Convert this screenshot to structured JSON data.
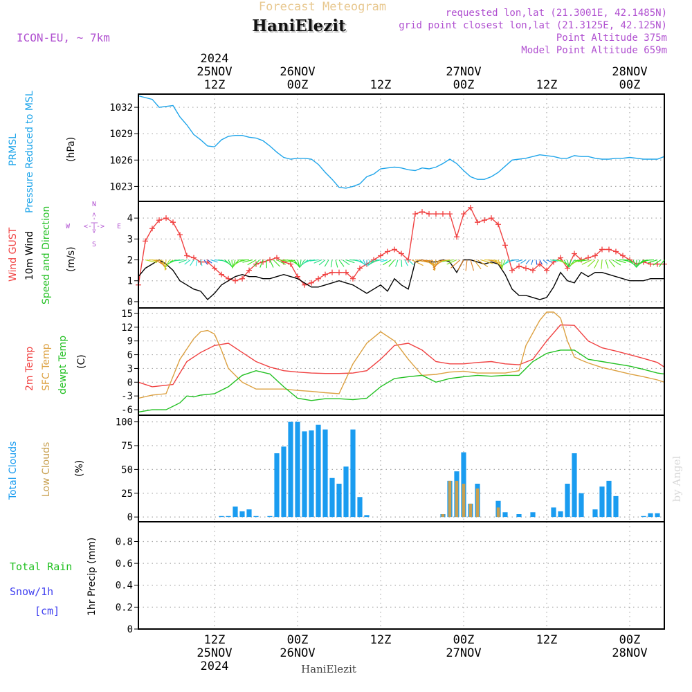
{
  "header": {
    "title": "Forecast Meteogram",
    "location": "HaniElezit",
    "model": "ICON-EU, ~ 7km",
    "requested": "requested lon,lat (21.3001E, 42.1485N)",
    "grid_point": "grid point closest lon,lat (21.3125E, 42.125N)",
    "point_altitude": "Point Altitude 375m",
    "model_altitude": "Model Point Altitude 659m",
    "compass": {
      "n": "N",
      "s": "S",
      "w": "W",
      "e": "E",
      "arrows": "<-|->"
    }
  },
  "time_axis": {
    "top_labels": [
      {
        "lines": [
          "2024",
          "25NOV",
          "12Z"
        ],
        "hour": 12
      },
      {
        "lines": [
          "26NOV",
          "00Z"
        ],
        "hour": 24
      },
      {
        "lines": [
          "12Z"
        ],
        "hour": 36
      },
      {
        "lines": [
          "27NOV",
          "00Z"
        ],
        "hour": 48
      },
      {
        "lines": [
          "12Z"
        ],
        "hour": 60
      },
      {
        "lines": [
          "28NOV",
          "00Z"
        ],
        "hour": 72
      }
    ],
    "bottom_labels": [
      {
        "lines": [
          "12Z",
          "25NOV",
          "2024"
        ],
        "hour": 12
      },
      {
        "lines": [
          "00Z",
          "26NOV"
        ],
        "hour": 24
      },
      {
        "lines": [
          "12Z"
        ],
        "hour": 36
      },
      {
        "lines": [
          "00Z",
          "27NOV"
        ],
        "hour": 48
      },
      {
        "lines": [
          "12Z"
        ],
        "hour": 60
      },
      {
        "lines": [
          "00Z",
          "28NOV"
        ],
        "hour": 72
      }
    ],
    "range_hours": [
      1,
      77
    ]
  },
  "colors": {
    "pressure": "#1fa5ea",
    "gust": "#f04040",
    "wind": "#000000",
    "temp2m": "#f04040",
    "sfc_temp": "#dca040",
    "dewpt": "#22c022",
    "total_clouds": "#1a9cf0",
    "low_clouds": "#c8a050",
    "total_rain": "#22c022",
    "snow": "#4040f0",
    "header_title": "#e8c890",
    "info": "#b050d0"
  },
  "chart_data": [
    {
      "type": "line",
      "panel": "pressure",
      "labels": [
        "PRMSL",
        "Pressure Reduced to MSL",
        "(hPa)"
      ],
      "yticks": [
        1023,
        1026,
        1029,
        1032
      ],
      "ylim": [
        1021.3,
        1033.5
      ],
      "grid": true,
      "series": [
        {
          "name": "PRMSL",
          "x": [
            1,
            3,
            4,
            6,
            7,
            8,
            9,
            10,
            11,
            12,
            13,
            14,
            15,
            16,
            17,
            18,
            19,
            20,
            21,
            22,
            23,
            24,
            25,
            26,
            27,
            28,
            29,
            30,
            31,
            32,
            33,
            34,
            35,
            36,
            37,
            38,
            39,
            40,
            41,
            42,
            43,
            44,
            45,
            46,
            47,
            48,
            49,
            50,
            51,
            52,
            53,
            54,
            55,
            56,
            57,
            58,
            59,
            60,
            61,
            62,
            63,
            64,
            65,
            66,
            67,
            68,
            69,
            70,
            71,
            72,
            73,
            74,
            75,
            76,
            77
          ],
          "values": [
            1033.3,
            1032.9,
            1032.0,
            1032.2,
            1030.9,
            1030.0,
            1028.9,
            1028.3,
            1027.6,
            1027.5,
            1028.3,
            1028.7,
            1028.8,
            1028.8,
            1028.6,
            1028.5,
            1028.2,
            1027.6,
            1026.9,
            1026.3,
            1026.1,
            1026.2,
            1026.2,
            1026.1,
            1025.5,
            1024.6,
            1023.8,
            1022.9,
            1022.8,
            1023.0,
            1023.3,
            1024.1,
            1024.4,
            1025.0,
            1025.1,
            1025.2,
            1025.1,
            1024.9,
            1024.8,
            1025.1,
            1025.0,
            1025.2,
            1025.6,
            1026.1,
            1025.6,
            1024.8,
            1024.1,
            1023.8,
            1023.8,
            1024.1,
            1024.6,
            1025.3,
            1026.0,
            1026.1,
            1026.2,
            1026.4,
            1026.6,
            1026.5,
            1026.4,
            1026.2,
            1026.2,
            1026.5,
            1026.4,
            1026.4,
            1026.2,
            1026.1,
            1026.1,
            1026.2,
            1026.2,
            1026.3,
            1026.2,
            1026.1,
            1026.1,
            1026.1,
            1026.4
          ]
        }
      ]
    },
    {
      "type": "line",
      "panel": "wind",
      "labels": [
        "Wind GUST",
        "10m Wind",
        "Speed and Direction",
        "(m/s)"
      ],
      "yticks": [
        0,
        1,
        2,
        3,
        4
      ],
      "ylim": [
        -0.3,
        4.8
      ],
      "grid": true,
      "series": [
        {
          "name": "Wind GUST",
          "x": [
            1,
            2,
            3,
            4,
            5,
            6,
            7,
            8,
            9,
            10,
            11,
            12,
            13,
            14,
            15,
            16,
            17,
            18,
            19,
            20,
            21,
            22,
            23,
            24,
            25,
            26,
            27,
            28,
            29,
            30,
            31,
            32,
            33,
            34,
            35,
            36,
            37,
            38,
            39,
            40,
            41,
            42,
            43,
            44,
            45,
            46,
            47,
            48,
            49,
            50,
            51,
            52,
            53,
            54,
            55,
            56,
            57,
            58,
            59,
            60,
            61,
            62,
            63,
            64,
            65,
            66,
            67,
            68,
            69,
            70,
            71,
            72,
            73,
            74,
            75,
            76,
            77
          ],
          "values": [
            0.8,
            2.9,
            3.5,
            3.9,
            4.0,
            3.8,
            3.2,
            2.2,
            2.1,
            1.9,
            1.9,
            1.6,
            1.3,
            1.1,
            1.0,
            1.1,
            1.5,
            1.8,
            1.9,
            2.0,
            2.1,
            1.9,
            1.8,
            1.2,
            0.8,
            0.9,
            1.1,
            1.3,
            1.4,
            1.4,
            1.4,
            1.1,
            1.6,
            1.8,
            2.0,
            2.2,
            2.4,
            2.5,
            2.3,
            2.0,
            4.2,
            4.3,
            4.2,
            4.2,
            4.2,
            4.2,
            3.1,
            4.2,
            4.5,
            3.8,
            3.9,
            4.0,
            3.7,
            2.7,
            1.5,
            1.7,
            1.6,
            1.5,
            1.8,
            1.5,
            1.9,
            2.1,
            1.6,
            2.3,
            2.0,
            2.1,
            2.2,
            2.5,
            2.5,
            2.4,
            2.2,
            2.0,
            1.8,
            1.9,
            1.8,
            1.8,
            1.8
          ]
        },
        {
          "name": "10m Wind",
          "x": [
            1,
            2,
            3,
            4,
            5,
            6,
            7,
            8,
            9,
            10,
            11,
            12,
            13,
            14,
            15,
            16,
            17,
            18,
            19,
            20,
            21,
            22,
            23,
            24,
            25,
            26,
            27,
            28,
            29,
            30,
            31,
            32,
            33,
            34,
            35,
            36,
            37,
            38,
            39,
            40,
            41,
            42,
            43,
            44,
            45,
            46,
            47,
            48,
            49,
            50,
            51,
            52,
            53,
            54,
            55,
            56,
            57,
            58,
            59,
            60,
            61,
            62,
            63,
            64,
            65,
            66,
            67,
            68,
            69,
            70,
            71,
            72,
            73,
            74,
            75,
            76,
            77
          ],
          "values": [
            1.2,
            1.6,
            1.8,
            2.0,
            1.8,
            1.5,
            1.0,
            0.8,
            0.6,
            0.5,
            0.1,
            0.4,
            0.8,
            1.0,
            1.2,
            1.3,
            1.2,
            1.2,
            1.1,
            1.1,
            1.2,
            1.3,
            1.2,
            1.1,
            0.9,
            0.7,
            0.7,
            0.8,
            0.9,
            1.0,
            0.9,
            0.8,
            0.6,
            0.4,
            0.6,
            0.8,
            0.5,
            1.1,
            0.8,
            0.6,
            1.9,
            2.0,
            1.9,
            1.9,
            2.0,
            1.9,
            1.4,
            2.0,
            2.0,
            1.9,
            1.8,
            1.9,
            1.8,
            1.3,
            0.6,
            0.3,
            0.3,
            0.2,
            0.1,
            0.2,
            0.7,
            1.4,
            1.0,
            0.9,
            1.4,
            1.2,
            1.4,
            1.4,
            1.3,
            1.2,
            1.1,
            1.0,
            1.0,
            1.0,
            1.1,
            1.1,
            1.1
          ]
        }
      ]
    },
    {
      "type": "line",
      "panel": "temperature",
      "labels": [
        "2m Temp",
        "SFC Temp",
        "dewpt Temp",
        "(C)"
      ],
      "yticks": [
        -6,
        -3,
        0,
        3,
        6,
        9,
        12,
        15
      ],
      "ylim": [
        -7.2,
        16.2
      ],
      "grid": true,
      "series": [
        {
          "name": "2m Temp",
          "x": [
            1,
            3,
            6,
            8,
            10,
            12,
            14,
            16,
            18,
            20,
            22,
            24,
            26,
            28,
            30,
            32,
            34,
            36,
            38,
            40,
            42,
            44,
            46,
            48,
            50,
            52,
            54,
            56,
            58,
            60,
            62,
            64,
            66,
            68,
            70,
            72,
            74,
            76,
            77
          ],
          "values": [
            0,
            -1,
            -0.5,
            4.5,
            6.5,
            8.0,
            8.5,
            6.5,
            4.5,
            3.3,
            2.5,
            2.2,
            2.0,
            1.9,
            1.9,
            2.0,
            2.5,
            5.0,
            8.0,
            8.5,
            7.0,
            4.5,
            4.0,
            4.0,
            4.3,
            4.5,
            4.0,
            3.8,
            5.0,
            9.0,
            12.5,
            12.4,
            9.0,
            7.5,
            6.8,
            6.0,
            5.2,
            4.3,
            3.3
          ]
        },
        {
          "name": "SFC Temp",
          "x": [
            1,
            3,
            5,
            7,
            9,
            10,
            11,
            12,
            13,
            14,
            16,
            18,
            20,
            22,
            24,
            26,
            28,
            30,
            32,
            34,
            36,
            38,
            40,
            42,
            44,
            46,
            48,
            50,
            52,
            54,
            56,
            57,
            59,
            60,
            61,
            62,
            63,
            64,
            65,
            66,
            68,
            70,
            72,
            74,
            76,
            77
          ],
          "values": [
            -3.5,
            -2.8,
            -2.5,
            5.0,
            9.5,
            11.0,
            11.3,
            10.5,
            7.0,
            3.0,
            0,
            -1.5,
            -1.5,
            -1.5,
            -1.8,
            -2,
            -2.3,
            -2.5,
            4,
            8.5,
            11,
            9,
            5,
            1.5,
            1.7,
            2.2,
            2.4,
            2.0,
            2.0,
            2.0,
            2.5,
            8.0,
            13.5,
            15.3,
            15.3,
            14.0,
            9.0,
            5.5,
            4.8,
            4.2,
            3.2,
            2.5,
            1.8,
            1.2,
            0.5,
            0
          ]
        },
        {
          "name": "dewpt Temp",
          "x": [
            1,
            3,
            5,
            7,
            8,
            9,
            10,
            12,
            14,
            16,
            18,
            20,
            22,
            24,
            26,
            28,
            30,
            32,
            34,
            36,
            38,
            40,
            42,
            44,
            46,
            48,
            50,
            52,
            54,
            56,
            58,
            60,
            62,
            64,
            66,
            68,
            70,
            72,
            74,
            76,
            77
          ],
          "values": [
            -6.5,
            -6,
            -6,
            -4.5,
            -3,
            -3.2,
            -2.8,
            -2.5,
            -1,
            1.5,
            2.5,
            1.8,
            -1,
            -3.5,
            -4.0,
            -3.6,
            -3.6,
            -3.8,
            -3.5,
            -1.0,
            0.8,
            1.2,
            1.5,
            0.0,
            0.8,
            1.2,
            1.5,
            1.3,
            1.5,
            1.5,
            4.5,
            6.3,
            7.0,
            7.0,
            5.0,
            4.5,
            4.0,
            3.5,
            2.8,
            2.0,
            1.8
          ]
        }
      ]
    },
    {
      "type": "bar",
      "panel": "clouds",
      "labels": [
        "Total Clouds",
        "Low Clouds",
        "(%)"
      ],
      "yticks": [
        0,
        25,
        50,
        75,
        100
      ],
      "ylim": [
        -5,
        107
      ],
      "grid": true,
      "series": [
        {
          "name": "Total Clouds",
          "x": [
            1,
            2,
            3,
            4,
            5,
            6,
            7,
            8,
            9,
            10,
            11,
            12,
            13,
            14,
            15,
            16,
            17,
            18,
            19,
            20,
            21,
            22,
            23,
            24,
            25,
            26,
            27,
            28,
            29,
            30,
            31,
            32,
            33,
            34,
            35,
            36,
            37,
            38,
            39,
            40,
            41,
            42,
            43,
            44,
            45,
            46,
            47,
            48,
            49,
            50,
            51,
            52,
            53,
            54,
            55,
            56,
            57,
            58,
            59,
            60,
            61,
            62,
            63,
            64,
            65,
            66,
            67,
            68,
            69,
            70,
            71,
            72,
            73,
            74,
            75,
            76,
            77
          ],
          "values": [
            0,
            0,
            0,
            0,
            0,
            0,
            0,
            0,
            0,
            0,
            0,
            0,
            1,
            1,
            11,
            6,
            8,
            1,
            0,
            1,
            67,
            74,
            100,
            100,
            90,
            91,
            97,
            92,
            41,
            35,
            53,
            92,
            21,
            2,
            0,
            0,
            0,
            0,
            0,
            0,
            0,
            0,
            0,
            0,
            3,
            38,
            48,
            68,
            14,
            35,
            0,
            0,
            17,
            5,
            0,
            3,
            0,
            5,
            0,
            0,
            10,
            6,
            35,
            67,
            25,
            0,
            8,
            32,
            38,
            22,
            0,
            0,
            0,
            1,
            4,
            4,
            0
          ]
        },
        {
          "name": "Low Clouds",
          "x": [
            45,
            46,
            47,
            48,
            49,
            50,
            53
          ],
          "values": [
            3,
            38,
            38,
            35,
            14,
            30,
            10
          ]
        }
      ]
    },
    {
      "type": "bar",
      "panel": "precip",
      "labels": [
        "Total Rain",
        "Snow/1h",
        "[cm]",
        "1hr Precip (mm)"
      ],
      "yticks": [
        0,
        0.2,
        0.4,
        0.6,
        0.8
      ],
      "ylim": [
        0,
        0.98
      ],
      "grid": true,
      "series": [
        {
          "name": "Total Rain",
          "x": [],
          "values": []
        }
      ]
    }
  ],
  "footer": {
    "location": "HaniElezit",
    "credit": "by Angel"
  }
}
